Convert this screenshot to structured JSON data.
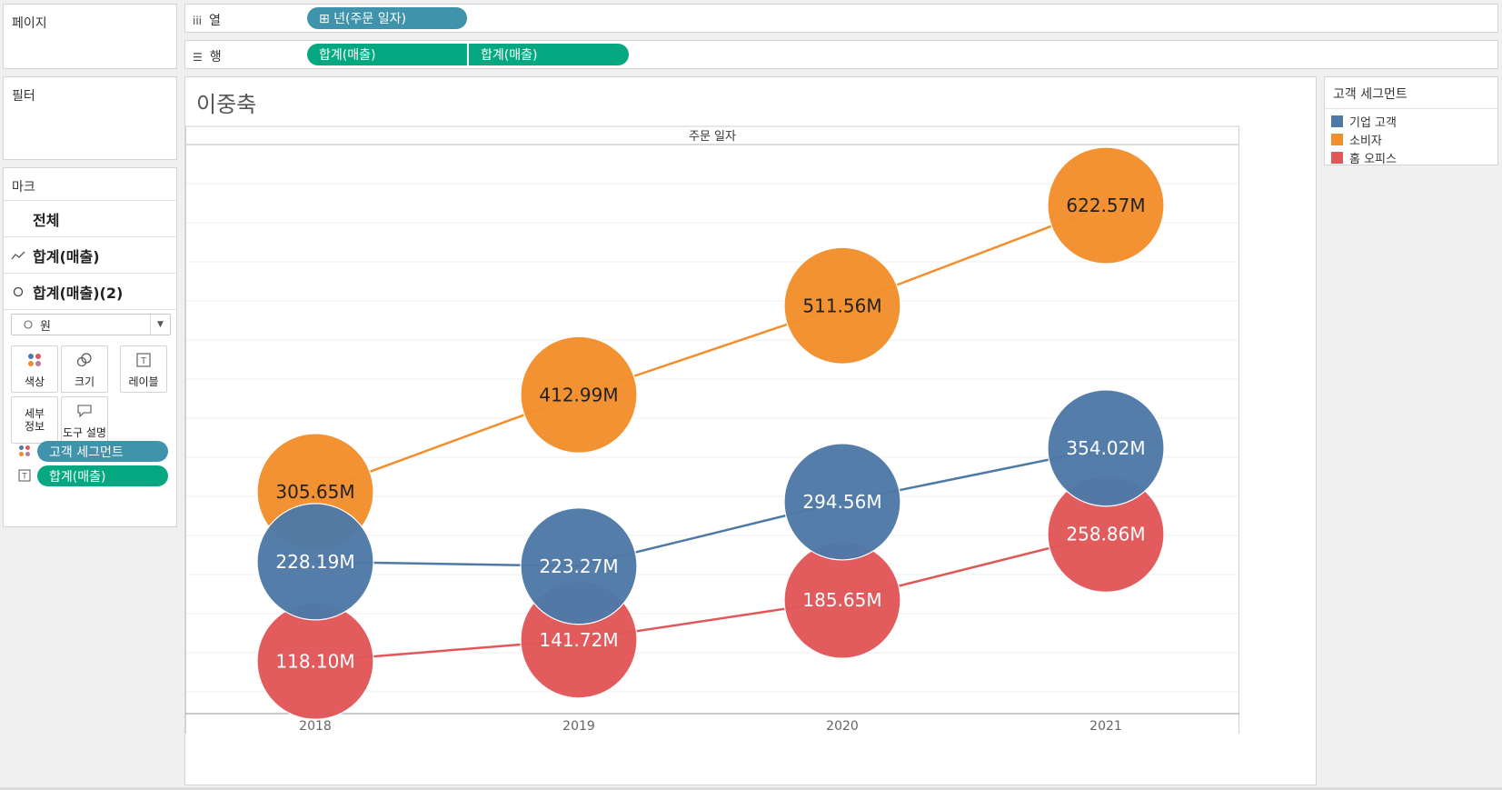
{
  "sidebar": {
    "pages_title": "페이지",
    "filters_title": "필터",
    "marks_title": "마크",
    "marks_rows": [
      {
        "label": "전체"
      },
      {
        "label": "합계(매출)",
        "icon": "line-chart-icon"
      },
      {
        "label": "합계(매출)(2)",
        "icon": "circle-icon"
      }
    ],
    "mark_type": "원",
    "tiles": {
      "color": "색상",
      "size": "크기",
      "label": "레이블",
      "detail_line1": "세부",
      "detail_line2": "정보",
      "tooltip": "도구 설명"
    },
    "mark_pills": [
      {
        "label": "고객 세그먼트"
      },
      {
        "label": "합계(매출)"
      }
    ]
  },
  "shelves": {
    "columns_label": "열",
    "columns_pill": "⊞ 년(주문 일자)",
    "rows_label": "행",
    "rows_pills": [
      "합계(매출)",
      "합계(매출)"
    ]
  },
  "view": {
    "title": "이중축"
  },
  "legend": {
    "title": "고객 세그먼트",
    "items": [
      {
        "label": "기업 고객",
        "color": "#4e79a7"
      },
      {
        "label": "소비자",
        "color": "#f28e2b"
      },
      {
        "label": "홈 오피스",
        "color": "#e15759"
      }
    ]
  },
  "chart_data": {
    "type": "line",
    "x_header": "주문 일자",
    "categories": [
      "2018",
      "2019",
      "2020",
      "2021"
    ],
    "series": [
      {
        "name": "소비자",
        "color": "#f28e2b",
        "values": [
          305.65,
          412.99,
          511.56,
          622.57
        ],
        "labels": [
          "305.65M",
          "412.99M",
          "511.56M",
          "622.57M"
        ]
      },
      {
        "name": "기업 고객",
        "color": "#4e79a7",
        "values": [
          228.19,
          223.27,
          294.56,
          354.02
        ],
        "labels": [
          "228.19M",
          "223.27M",
          "294.56M",
          "354.02M"
        ]
      },
      {
        "name": "홈 오피스",
        "color": "#e15759",
        "values": [
          118.1,
          141.72,
          185.65,
          258.86
        ],
        "labels": [
          "118.10M",
          "141.72M",
          "185.65M",
          "258.86M"
        ]
      }
    ],
    "mark_shape": "circle",
    "grid": true
  }
}
